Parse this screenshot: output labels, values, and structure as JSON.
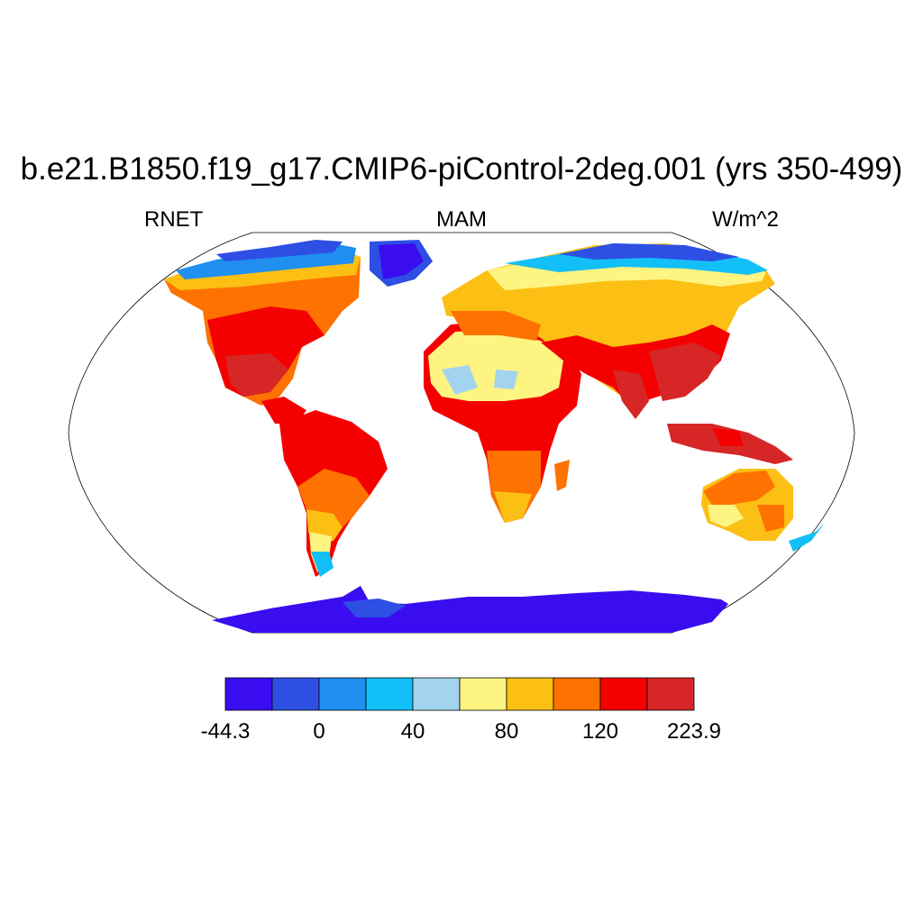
{
  "title": "b.e21.B1850.f19_g17.CMIP6-piControl-2deg.001 (yrs 350-499)",
  "variable": "RNET",
  "season": "MAM",
  "units": "W/m^2",
  "colorbar": {
    "colors": [
      "#3a0df0",
      "#2e4fe4",
      "#1f8ff0",
      "#13bff7",
      "#a2d4f0",
      "#fef481",
      "#fcbf13",
      "#fd7200",
      "#f50000",
      "#d62626"
    ],
    "labels": [
      "-44.3",
      "0",
      "40",
      "80",
      "120",
      "223.9"
    ]
  }
}
